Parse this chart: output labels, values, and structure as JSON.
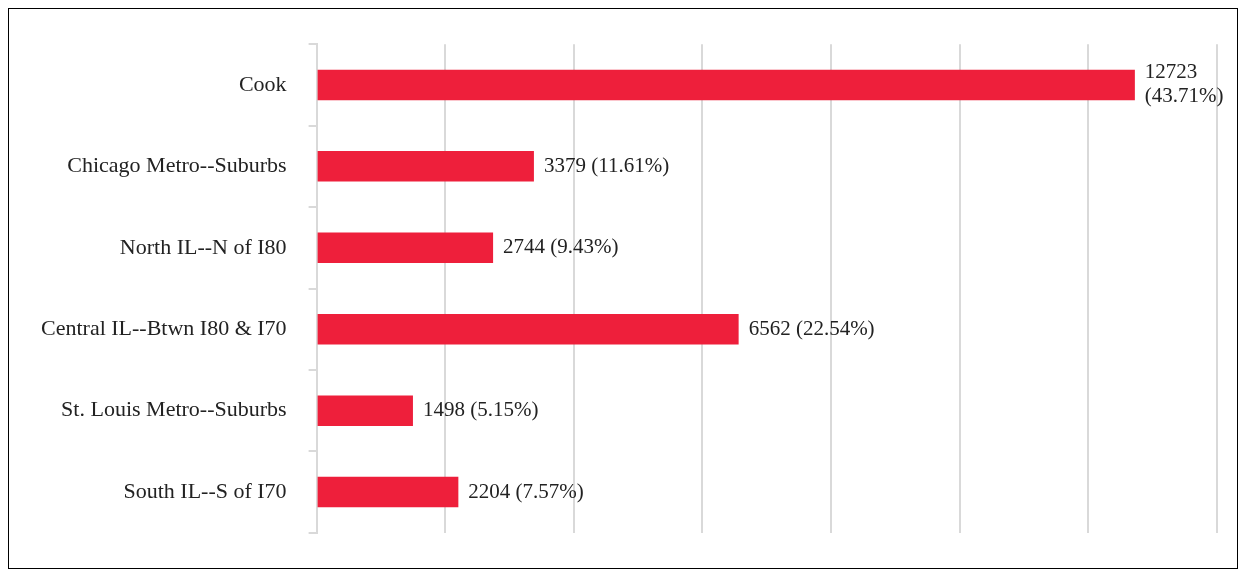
{
  "chart_data": {
    "type": "bar",
    "orientation": "horizontal",
    "categories": [
      "Cook",
      "Chicago Metro--Suburbs",
      "North IL--N of I80",
      "Central IL--Btwn I80 & I70",
      "St. Louis Metro--Suburbs",
      "South IL--S of I70"
    ],
    "values": [
      12723,
      3379,
      2744,
      6562,
      1498,
      2204
    ],
    "value_labels": [
      "12723 (43.71%)",
      "3379 (11.61%)",
      "2744 (9.43%)",
      "6562 (22.54%)",
      "1498 (5.15%)",
      "2204 (7.57%)"
    ],
    "color": "#ee1f3b",
    "xlim": [
      0,
      14000
    ],
    "xticks": [
      {
        "value": 0,
        "label": null
      },
      {
        "value": 2000,
        "label": null
      },
      {
        "value": 4000,
        "label": null
      },
      {
        "value": 6000,
        "label": null
      },
      {
        "value": 8000,
        "label": null
      },
      {
        "value": 10000,
        "label": null
      },
      {
        "value": 12000,
        "label": null
      },
      {
        "value": 14000,
        "label": null
      }
    ],
    "tick_labels": "y",
    "grid": "x",
    "legend": false
  }
}
